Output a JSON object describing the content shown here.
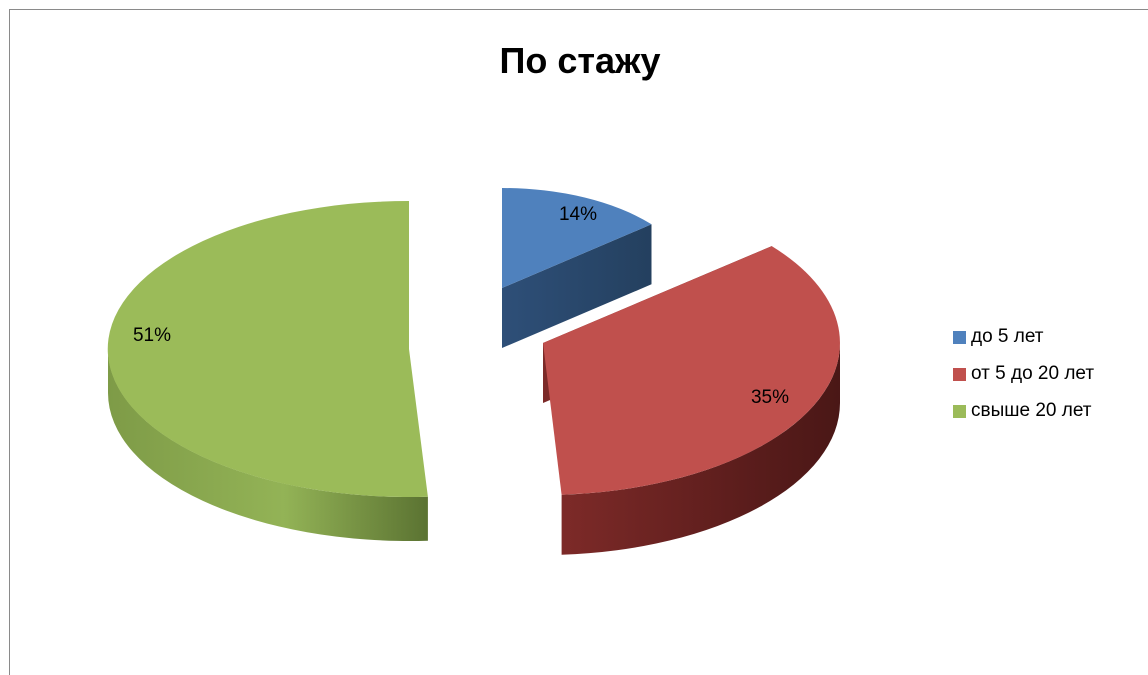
{
  "chart_data": {
    "type": "pie",
    "title": "По стажу",
    "categories": [
      "до 5 лет",
      "от 5 до 20 лет",
      "свыше 20 лет"
    ],
    "values": [
      14,
      35,
      51
    ],
    "data_labels": [
      "14%",
      "35%",
      "51%"
    ],
    "colors": [
      "#4F81BD",
      "#C0504D",
      "#9BBB59"
    ],
    "style": "3d-exploded",
    "legend_position": "right",
    "legend": [
      {
        "label": "до 5 лет",
        "color": "#4F81BD"
      },
      {
        "label": " от 5 до 20 лет",
        "color": "#C0504D"
      },
      {
        "label": "свыше 20 лет",
        "color": "#9BBB59"
      }
    ]
  }
}
